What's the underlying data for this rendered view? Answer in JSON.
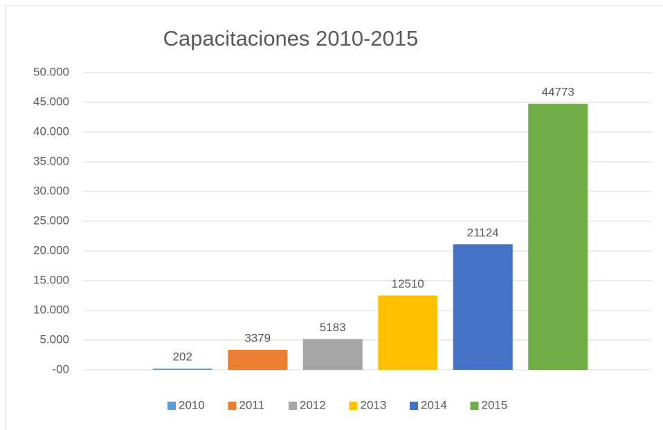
{
  "chart_data": {
    "type": "bar",
    "title": "Capacitaciones  2010-2015",
    "categories": [
      null
    ],
    "series": [
      {
        "name": "2010",
        "color": "#5b9bd5",
        "values": [
          202
        ]
      },
      {
        "name": "2011",
        "color": "#ed7d31",
        "values": [
          3379
        ]
      },
      {
        "name": "2012",
        "color": "#a5a5a5",
        "values": [
          5183
        ]
      },
      {
        "name": "2013",
        "color": "#ffc000",
        "values": [
          12510
        ]
      },
      {
        "name": "2014",
        "color": "#4472c4",
        "values": [
          21124
        ]
      },
      {
        "name": "2015",
        "color": "#70ad47",
        "values": [
          44773
        ]
      }
    ],
    "ylim": [
      0,
      50000
    ],
    "yticks": [
      {
        "value": 0,
        "label": "-00"
      },
      {
        "value": 5000,
        "label": "5.000"
      },
      {
        "value": 10000,
        "label": "10.000"
      },
      {
        "value": 15000,
        "label": "15.000"
      },
      {
        "value": 20000,
        "label": "20.000"
      },
      {
        "value": 25000,
        "label": "25.000"
      },
      {
        "value": 30000,
        "label": "30.000"
      },
      {
        "value": 35000,
        "label": "35.000"
      },
      {
        "value": 40000,
        "label": "40.000"
      },
      {
        "value": 45000,
        "label": "45.000"
      },
      {
        "value": 50000,
        "label": "50.000"
      }
    ],
    "grid": true,
    "legend": "bottom"
  }
}
